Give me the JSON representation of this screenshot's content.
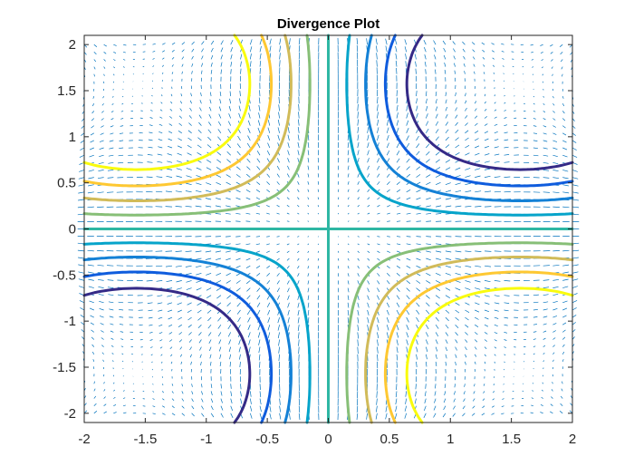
{
  "chart_data": {
    "type": "contour",
    "title": "Divergence Plot",
    "xlabel": "",
    "ylabel": "",
    "xlim": [
      -2,
      2
    ],
    "ylim": [
      -2.1,
      2.1
    ],
    "x_ticks": [
      "-2",
      "-1.5",
      "-1",
      "-0.5",
      "0",
      "0.5",
      "1",
      "1.5",
      "2"
    ],
    "y_ticks": [
      "2",
      "1.5",
      "1",
      "0.5",
      "0",
      "-0.5",
      "-1",
      "-1.5",
      "-2"
    ],
    "grid": false,
    "overlay": "quiver",
    "quiver_color": "#0072BD",
    "contour_levels": [
      -0.6,
      -0.45,
      -0.3,
      -0.15,
      0,
      0.15,
      0.3,
      0.45,
      0.6
    ],
    "contour_colors": [
      "#352A87",
      "#0F5CDD",
      "#1481D6",
      "#06A4CA",
      "#2EB7A4",
      "#87BF77",
      "#D1BB59",
      "#FEC832",
      "#F9FB0E"
    ],
    "contour_shape": "hyperbolic level sets, value proportional to -sin(x)*sin(y)"
  }
}
